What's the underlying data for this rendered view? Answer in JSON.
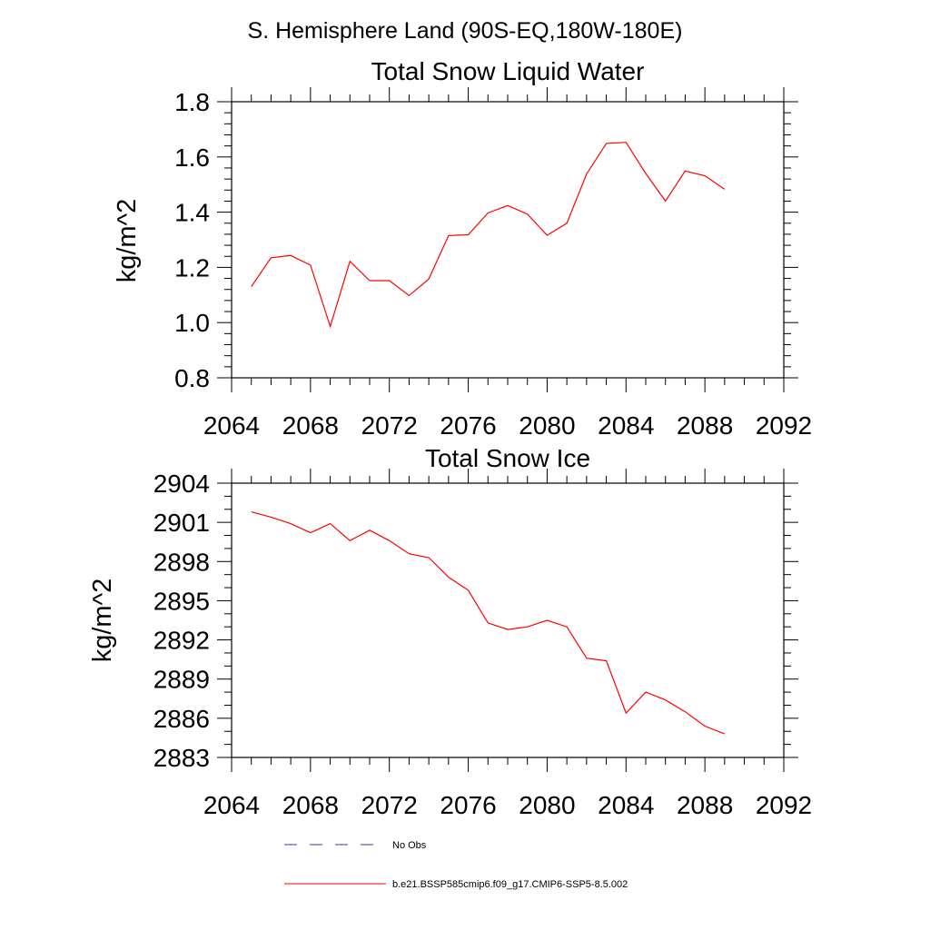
{
  "suptitle": "S. Hemisphere Land (90S-EQ,180W-180E)",
  "chart_data": [
    {
      "type": "line",
      "title": "Total Snow Liquid Water",
      "xlabel": "",
      "ylabel": "kg/m^2",
      "xlim": [
        2064,
        2092
      ],
      "ylim": [
        0.8,
        1.8
      ],
      "x_ticks": [
        "2064",
        "2068",
        "2072",
        "2076",
        "2080",
        "2084",
        "2088",
        "2092"
      ],
      "y_ticks": [
        "0.8",
        "1.0",
        "1.2",
        "1.4",
        "1.6",
        "1.8"
      ],
      "x_major_step": 4,
      "x_minor_step": 1,
      "y_major_step": 0.2,
      "y_minor_step": 0.04,
      "grid": false,
      "series": [
        {
          "name": "b.e21.BSSP585cmip6.f09_g17.CMIP6-SSP5-8.5.002",
          "color": "#ff0000",
          "x": [
            2065,
            2066,
            2067,
            2068,
            2069,
            2070,
            2071,
            2072,
            2073,
            2074,
            2075,
            2076,
            2077,
            2078,
            2079,
            2080,
            2081,
            2082,
            2083,
            2084,
            2085,
            2086,
            2087,
            2088,
            2089
          ],
          "y": [
            1.13,
            1.235,
            1.243,
            1.208,
            0.986,
            1.222,
            1.152,
            1.152,
            1.098,
            1.158,
            1.315,
            1.318,
            1.397,
            1.424,
            1.393,
            1.316,
            1.36,
            1.538,
            1.649,
            1.653,
            1.54,
            1.44,
            1.549,
            1.532,
            1.483
          ]
        }
      ]
    },
    {
      "type": "line",
      "title": "Total Snow Ice",
      "xlabel": "",
      "ylabel": "kg/m^2",
      "xlim": [
        2064,
        2092
      ],
      "ylim": [
        2883,
        2904
      ],
      "x_ticks": [
        "2064",
        "2068",
        "2072",
        "2076",
        "2080",
        "2084",
        "2088",
        "2092"
      ],
      "y_ticks": [
        "2883",
        "2886",
        "2889",
        "2892",
        "2895",
        "2898",
        "2901",
        "2904"
      ],
      "x_major_step": 4,
      "x_minor_step": 1,
      "y_major_step": 3,
      "y_minor_step": 1,
      "grid": false,
      "series": [
        {
          "name": "b.e21.BSSP585cmip6.f09_g17.CMIP6-SSP5-8.5.002",
          "color": "#ff0000",
          "x": [
            2065,
            2066,
            2067,
            2068,
            2069,
            2070,
            2071,
            2072,
            2073,
            2074,
            2075,
            2076,
            2077,
            2078,
            2079,
            2080,
            2081,
            2082,
            2083,
            2084,
            2085,
            2086,
            2087,
            2088,
            2089
          ],
          "y": [
            2901.8,
            2901.4,
            2900.9,
            2900.2,
            2900.9,
            2899.6,
            2900.4,
            2899.6,
            2898.6,
            2898.3,
            2896.8,
            2895.8,
            2893.3,
            2892.8,
            2893.0,
            2893.5,
            2893.0,
            2890.6,
            2890.4,
            2886.4,
            2888.0,
            2887.4,
            2886.5,
            2885.4,
            2884.8
          ]
        }
      ]
    }
  ],
  "legend": [
    {
      "label": "No Obs",
      "style": "dashed",
      "color": "#3b3b8f"
    },
    {
      "label": "b.e21.BSSP585cmip6.f09_g17.CMIP6-SSP5-8.5.002",
      "style": "solid",
      "color": "#ff0000"
    }
  ]
}
